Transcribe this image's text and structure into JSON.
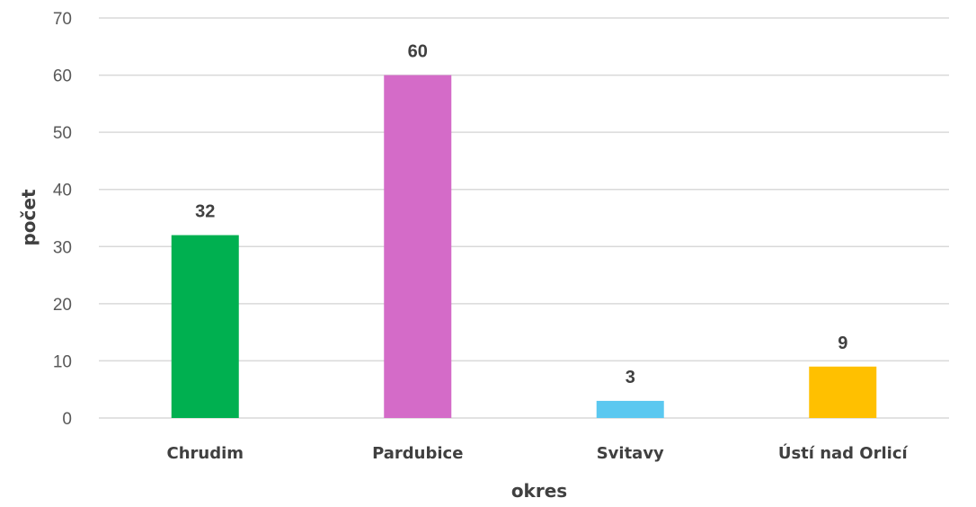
{
  "chart_data": {
    "type": "bar",
    "categories": [
      "Chrudim",
      "Pardubice",
      "Svitavy",
      "Ústí nad Orlicí"
    ],
    "values": [
      32,
      60,
      3,
      9
    ],
    "colors": [
      "#00b050",
      "#d46bc8",
      "#5bc8f0",
      "#ffc000"
    ],
    "title": "",
    "xlabel": "okres",
    "ylabel": "počet",
    "ylim": [
      0,
      70
    ],
    "yticks": [
      0,
      10,
      20,
      30,
      40,
      50,
      60,
      70
    ],
    "grid": true,
    "legend": "none",
    "data_labels": true
  }
}
